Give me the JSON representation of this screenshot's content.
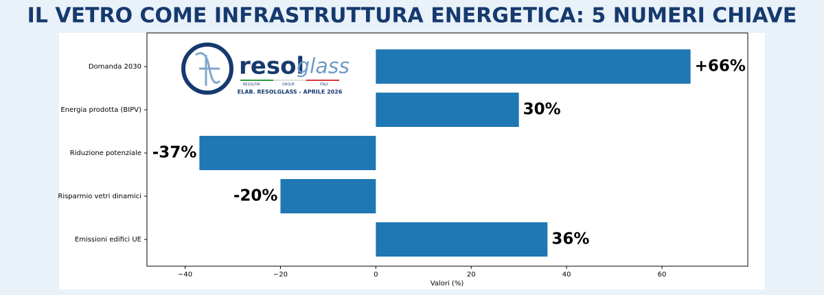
{
  "chart_data": {
    "type": "hbar",
    "title": "IL VETRO COME INFRASTRUTTURA ENERGETICA: 5 NUMERI CHIAVE",
    "categories": [
      "Domanda 2030",
      "Energia prodotta (BIPV)",
      "Riduzione potenziale",
      "Risparmio vetri dinamici",
      "Emissioni edifici UE"
    ],
    "values": [
      66,
      30,
      -37,
      -20,
      36
    ],
    "value_labels": [
      "+66%",
      "30%",
      "-37%",
      "-20%",
      "36%"
    ],
    "color": "#1f77b4",
    "xlabel": "Valori (%)",
    "xlim": [
      -48,
      78
    ],
    "xticks": [
      {
        "value": -40,
        "label": "−40"
      },
      {
        "value": -20,
        "label": "−20"
      },
      0,
      20,
      40,
      60
    ],
    "grid": false
  },
  "logo": {
    "brand_first": "resol",
    "brand_second": "glass",
    "tagline": [
      "RESOLFIN",
      "GROUP",
      "ITALY"
    ],
    "credit": "ELAB. RESOLGLASS - APRILE 2026"
  }
}
